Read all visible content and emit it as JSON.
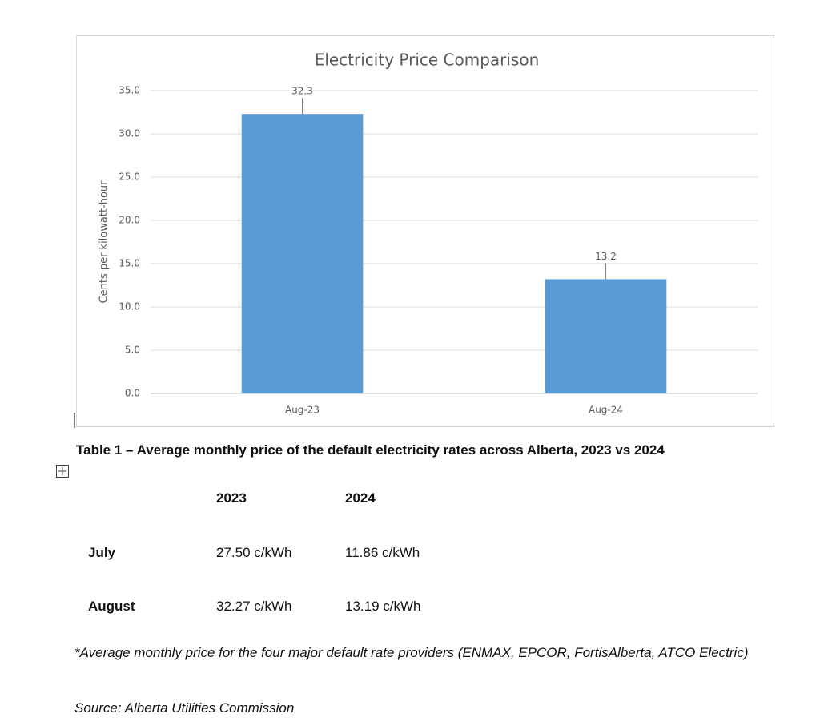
{
  "chart_data": {
    "type": "bar",
    "title": "Electricity Price Comparison",
    "y_label": "Cents per kilowatt-hour",
    "categories": [
      "Aug-23",
      "Aug-24"
    ],
    "values": [
      32.3,
      13.2
    ],
    "color": "#5b9bd5",
    "ylim": [
      0,
      35
    ],
    "yticks": [
      {
        "value": 0,
        "label": "0.0"
      },
      {
        "value": 5,
        "label": "5.0"
      },
      {
        "value": 10,
        "label": "10.0"
      },
      {
        "value": 15,
        "label": "15.0"
      },
      {
        "value": 20,
        "label": "20.0"
      },
      {
        "value": 25,
        "label": "25.0"
      },
      {
        "value": 30,
        "label": "30.0"
      },
      {
        "value": 35,
        "label": "35.0"
      }
    ],
    "grid": true
  },
  "table": {
    "caption": "Table 1 – Average monthly price of the default electricity rates across Alberta, 2023 vs 2024",
    "columns": [
      "2023",
      "2024"
    ],
    "rows": [
      [
        "July",
        "27.50 c/kWh",
        "11.86 c/kWh"
      ],
      [
        "August",
        "32.27 c/kWh",
        "13.19 c/kWh"
      ]
    ]
  },
  "footnote": "*Average monthly price for the four major default rate providers (ENMAX, EPCOR, FortisAlberta, ATCO Electric)",
  "source": "Source: Alberta Utilities Commission"
}
